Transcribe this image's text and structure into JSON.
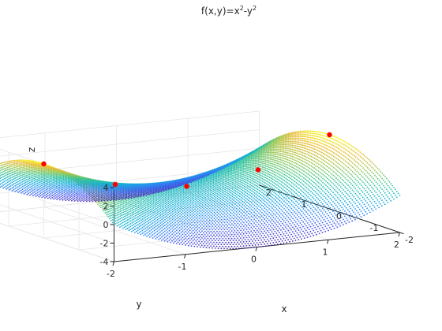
{
  "chart_data": {
    "type": "surface",
    "title": {
      "base": "f(x,y)=x",
      "sup1": "2",
      "mid": "-y",
      "sup2": "2"
    },
    "function": "x^2 - y^2",
    "xlabel": "x",
    "ylabel": "y",
    "zlabel": "z",
    "xlim": [
      -2,
      2
    ],
    "ylim": [
      -2,
      2
    ],
    "zlim": [
      -4,
      4
    ],
    "x_ticks": [
      "-2",
      "-1",
      "0",
      "1",
      "2"
    ],
    "y_ticks": [
      "-2",
      "-1",
      "0",
      "1",
      "2"
    ],
    "z_ticks": [
      "-4",
      "-2",
      "0",
      "2",
      "4"
    ],
    "grid": true,
    "box": true,
    "colormap": "parula",
    "surface_style": "dense point mesh",
    "highlight_points": [
      {
        "x": -2.0,
        "y": 0.0,
        "z": 4.0
      },
      {
        "x": -1.0,
        "y": 0.0,
        "z": 1.0
      },
      {
        "x": 0.0,
        "y": 0.0,
        "z": 0.0
      },
      {
        "x": 1.0,
        "y": 0.0,
        "z": 1.0
      },
      {
        "x": 2.0,
        "y": 0.0,
        "z": 4.0
      }
    ],
    "colors": {
      "background": "#ffffff",
      "axes_box": "#262626",
      "grid": "#e5e5e5",
      "highlight": "#ff0000"
    }
  }
}
